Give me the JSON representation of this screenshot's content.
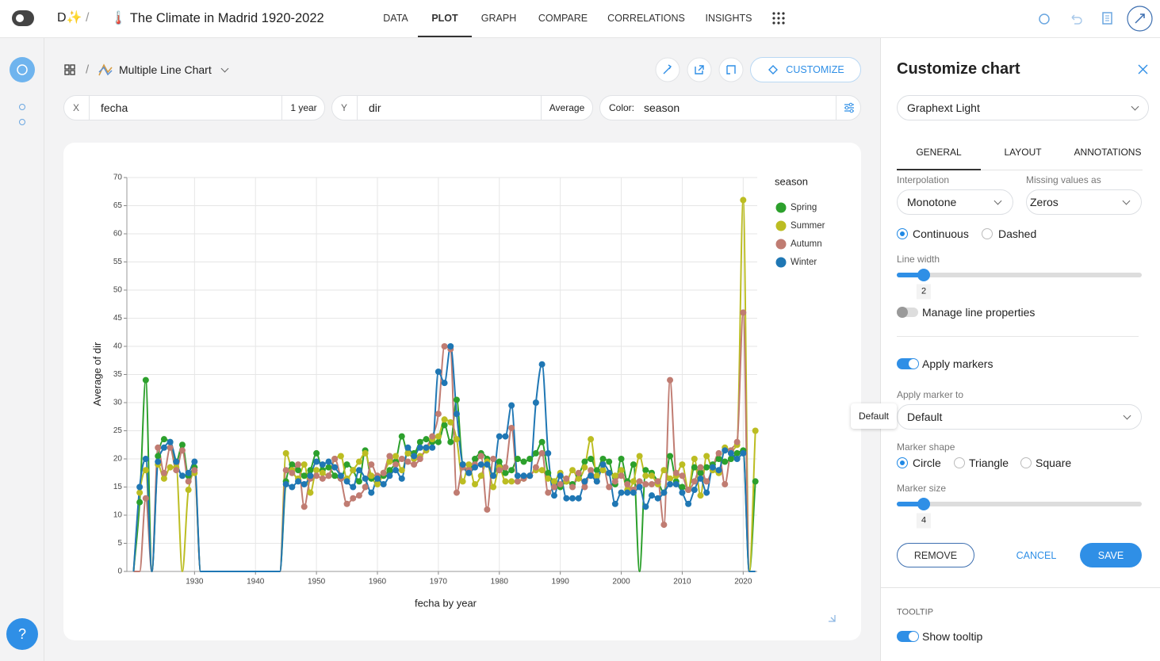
{
  "header": {
    "logo": "D✨",
    "separator": "/",
    "title": "🌡️ The Climate in Madrid 1920-2022",
    "tabs": [
      "DATA",
      "PLOT",
      "GRAPH",
      "COMPARE",
      "CORRELATIONS",
      "INSIGHTS"
    ],
    "active_tab": 1
  },
  "sidebar": {
    "help": "?"
  },
  "toolbar": {
    "separator": "/",
    "chart_type": "Multiple Line Chart",
    "customize": "CUSTOMIZE"
  },
  "encoding": {
    "x_label": "X",
    "x_field": "fecha",
    "x_bin": "1 year",
    "y_label": "Y",
    "y_field": "dir",
    "y_agg": "Average",
    "color_label": "Color:",
    "color_field": "season"
  },
  "chart_data": {
    "type": "line",
    "x_label": "fecha by year",
    "y_label": "Average of dir",
    "legend_title": "season",
    "legend": "right",
    "grid": true,
    "markers": true,
    "xlim": [
      1918.9,
      2022.3
    ],
    "ylim": [
      0,
      70
    ],
    "xticks": [
      1930,
      1940,
      1950,
      1960,
      1970,
      1980,
      1990,
      2000,
      2010,
      2020
    ],
    "yticks": [
      0,
      5,
      10,
      15,
      20,
      25,
      30,
      35,
      40,
      45,
      50,
      55,
      60,
      65,
      70
    ],
    "x": [
      1920,
      1921,
      1922,
      1923,
      1924,
      1925,
      1926,
      1927,
      1928,
      1929,
      1930,
      1931,
      1932,
      1933,
      1934,
      1935,
      1936,
      1937,
      1938,
      1939,
      1940,
      1941,
      1942,
      1943,
      1944,
      1945,
      1946,
      1947,
      1948,
      1949,
      1950,
      1951,
      1952,
      1953,
      1954,
      1955,
      1956,
      1957,
      1958,
      1959,
      1960,
      1961,
      1962,
      1963,
      1964,
      1965,
      1966,
      1967,
      1968,
      1969,
      1970,
      1971,
      1972,
      1973,
      1974,
      1975,
      1976,
      1977,
      1978,
      1979,
      1980,
      1981,
      1982,
      1983,
      1984,
      1985,
      1986,
      1987,
      1988,
      1989,
      1990,
      1991,
      1992,
      1993,
      1994,
      1995,
      1996,
      1997,
      1998,
      1999,
      2000,
      2001,
      2002,
      2003,
      2004,
      2005,
      2006,
      2007,
      2008,
      2009,
      2010,
      2011,
      2012,
      2013,
      2014,
      2015,
      2016,
      2017,
      2018,
      2019,
      2020,
      2021,
      2022
    ],
    "series": [
      {
        "name": "Spring",
        "color": "#2ca02c",
        "values": [
          0,
          12.3,
          34,
          0,
          20.5,
          23.5,
          23,
          19.5,
          22.5,
          17,
          18.5,
          0,
          0,
          0,
          0,
          0,
          0,
          0,
          0,
          0,
          0,
          0,
          0,
          0,
          0,
          16,
          19,
          18,
          17,
          18,
          21,
          18,
          18.5,
          17,
          16.5,
          19,
          18,
          16,
          21.5,
          16.5,
          16.5,
          17,
          18,
          19.5,
          24,
          21,
          21,
          23,
          23.5,
          23,
          23,
          26,
          23,
          30.5,
          19,
          18,
          20,
          21,
          20,
          17,
          19.5,
          17.5,
          18,
          20,
          19.5,
          20,
          21,
          23,
          17.5,
          16,
          15,
          16,
          15.5,
          17,
          19.5,
          20,
          18,
          20,
          19.5,
          15.5,
          20,
          16,
          19,
          0,
          18,
          17.5,
          16,
          14,
          20.5,
          16,
          15,
          14.5,
          18.5,
          17.5,
          18.5,
          19,
          20,
          19.5,
          20,
          21,
          21.5,
          0,
          16
        ]
      },
      {
        "name": "Summer",
        "color": "#bcbd22",
        "values": [
          0,
          14,
          18,
          0,
          19,
          16.5,
          18.5,
          18.5,
          0,
          14.5,
          17.5,
          0,
          0,
          0,
          0,
          0,
          0,
          0,
          0,
          0,
          0,
          0,
          0,
          0,
          0,
          21,
          18,
          16.5,
          19,
          14,
          18,
          17.5,
          17,
          20,
          20.5,
          16.5,
          18,
          19.5,
          21,
          17,
          15.5,
          17.5,
          19.5,
          20.5,
          18,
          21,
          20,
          20.5,
          21.5,
          23.5,
          24,
          27,
          26.5,
          23.5,
          16,
          19,
          15.5,
          17,
          19.5,
          15,
          18.5,
          16,
          16,
          16,
          16.5,
          17,
          18,
          18,
          16.5,
          16,
          17.5,
          16,
          18,
          16.5,
          18.5,
          23.5,
          17,
          18,
          17.5,
          17,
          18,
          14.5,
          16,
          20.5,
          17,
          17,
          15.5,
          18,
          16.5,
          17,
          19,
          14.5,
          20,
          13.5,
          20.5,
          18,
          17.5,
          22,
          21.5,
          22.5,
          66,
          0,
          25
        ]
      },
      {
        "name": "Autumn",
        "color": "#c07c72",
        "values": [
          0,
          0,
          13,
          0,
          22,
          17.5,
          22,
          18,
          21.5,
          16,
          18,
          0,
          0,
          0,
          0,
          0,
          0,
          0,
          0,
          0,
          0,
          0,
          0,
          0,
          0,
          18,
          17.5,
          19,
          11.5,
          16.5,
          17,
          16.5,
          17,
          20,
          16.5,
          12,
          13,
          13.5,
          15,
          19,
          17,
          17.5,
          20.5,
          19,
          20,
          19.5,
          19,
          20,
          22,
          24,
          28,
          40,
          39.5,
          14,
          18.5,
          18,
          19,
          20.5,
          11,
          20,
          18,
          18.5,
          25.5,
          16,
          16.5,
          17,
          18.5,
          21,
          14,
          15,
          15.5,
          16.5,
          15,
          17.5,
          15,
          18,
          16,
          19,
          15,
          16,
          17,
          15.5,
          14.5,
          16,
          15.5,
          15.5,
          16,
          8.3,
          34,
          17.5,
          17,
          14.5,
          16,
          18.5,
          16,
          18.5,
          21,
          15.5,
          21.5,
          23,
          46,
          0,
          0
        ]
      },
      {
        "name": "Winter",
        "color": "#1f77b4",
        "values": [
          0,
          15,
          20,
          0,
          19.5,
          22,
          23,
          19.5,
          17,
          17.5,
          19.5,
          0,
          0,
          0,
          0,
          0,
          0,
          0,
          0,
          0,
          0,
          0,
          0,
          0,
          0,
          15.5,
          15,
          16,
          15.5,
          17,
          19.5,
          19,
          19.5,
          18.5,
          17,
          16,
          15,
          18,
          16.5,
          14,
          16.5,
          15.5,
          17,
          18,
          16.5,
          22,
          20.5,
          22,
          22,
          22,
          35.5,
          33.5,
          40,
          28,
          19,
          17.5,
          18.5,
          19,
          19,
          17,
          24,
          24,
          29.5,
          17,
          17,
          17,
          30,
          36.8,
          21,
          13.5,
          17,
          13,
          13,
          13,
          16,
          17,
          16,
          19,
          17.5,
          12,
          14,
          14,
          14,
          15,
          11.5,
          13.5,
          13,
          14,
          15.5,
          15.5,
          14,
          12,
          14.5,
          16.5,
          14,
          18.5,
          18,
          21.5,
          21,
          20,
          21,
          0,
          0
        ]
      }
    ]
  },
  "panel": {
    "title": "Customize chart",
    "theme": "Graphext Light",
    "tabs": [
      "GENERAL",
      "LAYOUT",
      "ANNOTATIONS"
    ],
    "interpolation_label": "Interpolation",
    "interpolation": "Monotone",
    "missing_label": "Missing values as",
    "missing": "Zeros",
    "line_styles": [
      "Continuous",
      "Dashed"
    ],
    "line_width_label": "Line width",
    "line_width": 2,
    "manage_lines": "Manage line properties",
    "apply_markers": "Apply markers",
    "apply_to_label": "Apply marker to",
    "apply_to": "Default",
    "apply_to_tooltip": "Default",
    "marker_shape_label": "Marker shape",
    "marker_shapes": [
      "Circle",
      "Triangle",
      "Square"
    ],
    "marker_size_label": "Marker size",
    "marker_size": 4,
    "remove": "REMOVE",
    "cancel": "CANCEL",
    "save": "SAVE",
    "tooltip_section": "TOOLTIP",
    "show_tooltip": "Show tooltip"
  }
}
